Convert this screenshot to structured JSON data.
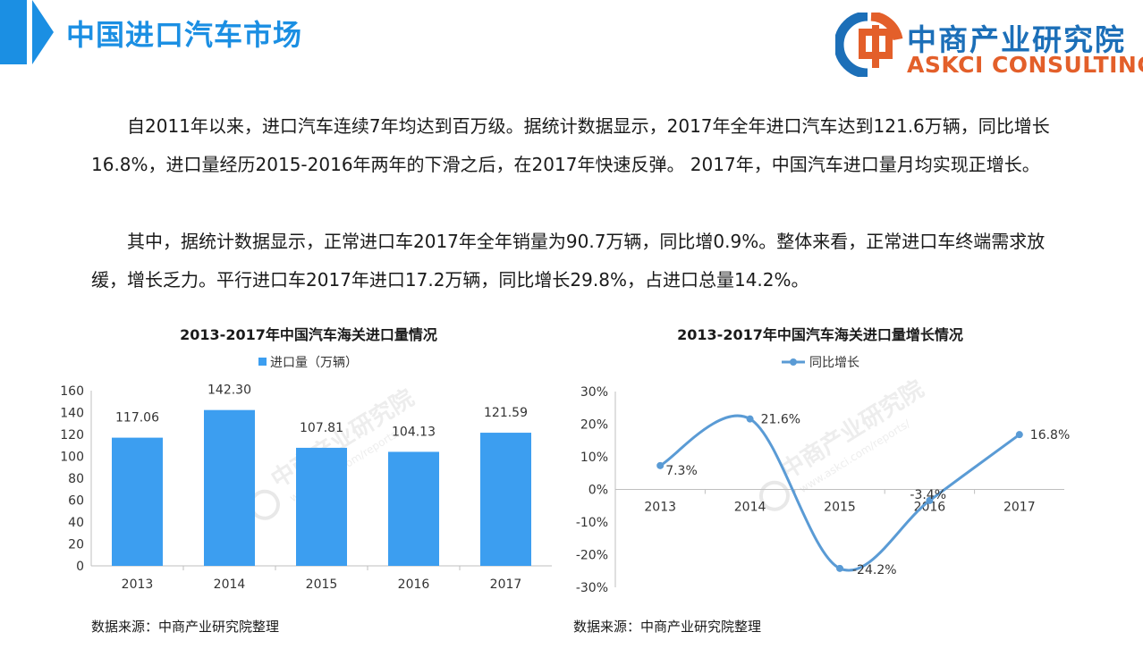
{
  "header": {
    "title": "中国进口汽车市场",
    "logo_name": "中商产业研究院",
    "logo_en": "ASKCI CONSULTING"
  },
  "body": {
    "paragraph1": "　　自2011年以来，进口汽车连续7年均达到百万级。据统计数据显示，2017年全年进口汽车达到121.6万辆，同比增长16.8%，进口量经历2015-2016年两年的下滑之后，在2017年快速反弹。 2017年，中国汽车进口量月均实现正增长。",
    "paragraph2": "　　其中，据统计数据显示，正常进口车2017年全年销量为90.7万辆，同比增0.9%。整体来看，正常进口车终端需求放缓，增长乏力。平行进口车2017年进口17.2万辆，同比增长29.8%，占进口总量14.2%。"
  },
  "watermark": {
    "name": "中商产业研究院",
    "url": "www.askci.com/reports/"
  },
  "colors": {
    "accent": "#1b8fe3",
    "bar": "#3c9ef0",
    "line": "#5a9bd5",
    "logo_blue": "#1c6fb8",
    "logo_orange": "#e35f2a"
  },
  "sources": {
    "left": "数据来源：中商产业研究院整理",
    "right": "数据来源：中商产业研究院整理"
  },
  "chart_data": [
    {
      "type": "bar",
      "title": "2013-2017年中国汽车海关进口量情况",
      "categories": [
        "2013",
        "2014",
        "2015",
        "2016",
        "2017"
      ],
      "series": [
        {
          "name": "进口量（万辆）",
          "values": [
            117.06,
            142.3,
            107.81,
            104.13,
            121.59
          ]
        }
      ],
      "data_labels": [
        "117.06",
        "142.30",
        "107.81",
        "104.13",
        "121.59"
      ],
      "ylim": [
        0,
        160
      ],
      "yticks": [
        0,
        20,
        40,
        60,
        80,
        100,
        120,
        140,
        160
      ],
      "ytick_labels": [
        "0",
        "20",
        "40",
        "60",
        "80",
        "100",
        "120",
        "140",
        "160"
      ],
      "legend_position": "top",
      "grid": false
    },
    {
      "type": "line",
      "title": "2013-2017年中国汽车海关进口量增长情况",
      "categories": [
        "2013",
        "2014",
        "2015",
        "2016",
        "2017"
      ],
      "series": [
        {
          "name": "同比增长",
          "values": [
            7.3,
            21.6,
            -24.2,
            -3.4,
            16.8
          ]
        }
      ],
      "data_labels": [
        "7.3%",
        "21.6%",
        "-24.2%",
        "-3.4%",
        "16.8%"
      ],
      "ylim": [
        -30,
        30
      ],
      "yticks": [
        30,
        20,
        10,
        0,
        -10,
        -20,
        -30
      ],
      "ytick_labels": [
        "30%",
        "20%",
        "10%",
        "0%",
        "-10%",
        "-20%",
        "-30%"
      ],
      "smooth": true,
      "legend_position": "top",
      "grid": false
    }
  ]
}
